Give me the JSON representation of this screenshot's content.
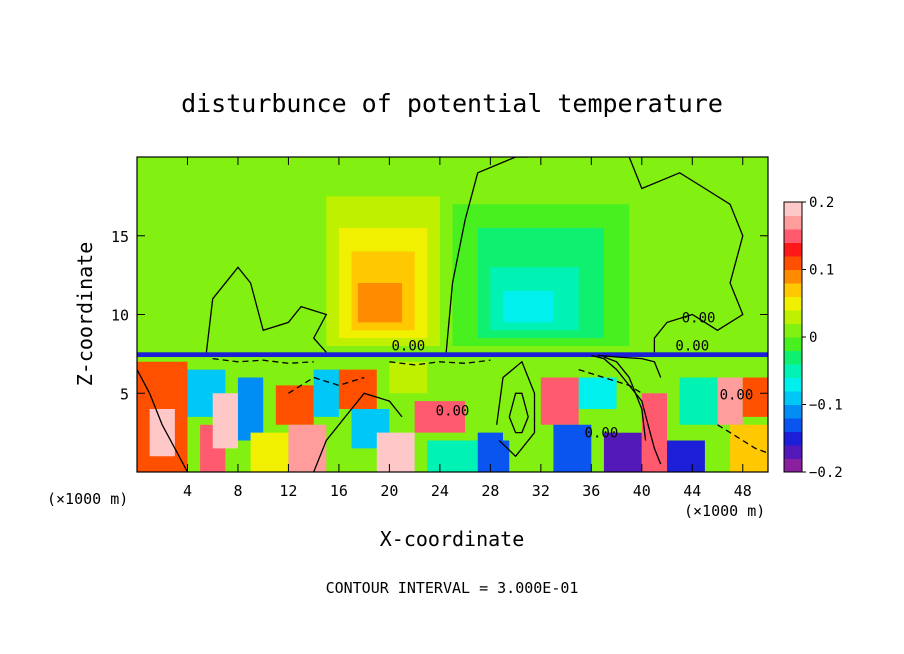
{
  "chart_data": {
    "type": "heatmap",
    "title": "disturbunce of potential temperature",
    "xlabel": "X-coordinate",
    "ylabel": "Z-coordinate",
    "x_unit_left": "(×1000 m)",
    "x_unit_right": "(×1000 m)",
    "xlim": [
      0,
      50
    ],
    "ylim": [
      0,
      20
    ],
    "x_ticks": [
      4,
      8,
      12,
      16,
      20,
      24,
      28,
      32,
      36,
      40,
      44,
      48
    ],
    "x_tick_labels": [
      "4",
      "8",
      "12",
      "16",
      "20",
      "24",
      "28",
      "32",
      "36",
      "40",
      "44",
      "48"
    ],
    "y_ticks": [
      5,
      10,
      15
    ],
    "y_tick_labels": [
      "5",
      "10",
      "15"
    ],
    "colorbar": {
      "min": -0.2,
      "max": 0.2,
      "ticks": [
        0.2,
        0.1,
        0,
        -0.1,
        -0.2
      ],
      "tick_labels": [
        "0.2",
        "0.1",
        "0",
        "−0.1",
        "−0.2"
      ],
      "colors": [
        "#8a1fa0",
        "#5218b8",
        "#1c1ed8",
        "#0a55f0",
        "#008ef4",
        "#00c8f6",
        "#00f0ee",
        "#00f2b4",
        "#10f070",
        "#48f020",
        "#82f010",
        "#bef000",
        "#f0f000",
        "#ffc800",
        "#ff8c00",
        "#ff5000",
        "#ff1818",
        "#ff5a6e",
        "#ff9c9c",
        "#ffc8c8"
      ]
    },
    "contour_labels": [
      {
        "text": "0.00",
        "x": 21.5,
        "z": 7.7
      },
      {
        "text": "0.00",
        "x": 44.5,
        "z": 9.5
      },
      {
        "text": "0.00",
        "x": 44.0,
        "z": 7.7
      },
      {
        "text": "0.00",
        "x": 25.0,
        "z": 3.6
      },
      {
        "text": "0.00",
        "x": 47.5,
        "z": 4.6
      },
      {
        "text": "0.00",
        "x": 36.8,
        "z": 2.2
      }
    ],
    "cells": [
      {
        "x0": 0,
        "x1": 50,
        "z0": 7.5,
        "z1": 20,
        "v": 0.01
      },
      {
        "x0": 15,
        "x1": 24,
        "z0": 8,
        "z1": 17.5,
        "v": 0.03
      },
      {
        "x0": 16,
        "x1": 23,
        "z0": 8.5,
        "z1": 15.5,
        "v": 0.05
      },
      {
        "x0": 17,
        "x1": 22,
        "z0": 9,
        "z1": 14,
        "v": 0.07
      },
      {
        "x0": 17.5,
        "x1": 21,
        "z0": 9.5,
        "z1": 12,
        "v": 0.09
      },
      {
        "x0": 25,
        "x1": 39,
        "z0": 8,
        "z1": 17,
        "v": -0.01
      },
      {
        "x0": 27,
        "x1": 37,
        "z0": 8.5,
        "z1": 15.5,
        "v": -0.03
      },
      {
        "x0": 28,
        "x1": 35,
        "z0": 9,
        "z1": 13,
        "v": -0.05
      },
      {
        "x0": 29,
        "x1": 33,
        "z0": 9.5,
        "z1": 11.5,
        "v": -0.07
      },
      {
        "x0": 41,
        "x1": 50,
        "z0": 8,
        "z1": 16,
        "v": 0.015
      },
      {
        "x0": 0,
        "x1": 50,
        "z0": 0,
        "z1": 7.4,
        "v": 0.005
      },
      {
        "x0": 0,
        "x1": 50,
        "z0": 7.3,
        "z1": 7.6,
        "v": -0.16
      },
      {
        "x0": 0,
        "x1": 4,
        "z0": 0,
        "z1": 7,
        "v": 0.12
      },
      {
        "x0": 1,
        "x1": 3,
        "z0": 1,
        "z1": 4,
        "v": 0.2
      },
      {
        "x0": 4,
        "x1": 7,
        "z0": 3.5,
        "z1": 6.5,
        "v": -0.1
      },
      {
        "x0": 5,
        "x1": 7,
        "z0": 0,
        "z1": 3,
        "v": 0.15
      },
      {
        "x0": 6,
        "x1": 8,
        "z0": 1.5,
        "z1": 5,
        "v": 0.2
      },
      {
        "x0": 8,
        "x1": 10,
        "z0": 2,
        "z1": 6,
        "v": -0.12
      },
      {
        "x0": 9,
        "x1": 12,
        "z0": 0,
        "z1": 2.5,
        "v": 0.05
      },
      {
        "x0": 11,
        "x1": 14,
        "z0": 3,
        "z1": 5.5,
        "v": 0.1
      },
      {
        "x0": 12,
        "x1": 15,
        "z0": 0,
        "z1": 3,
        "v": 0.16
      },
      {
        "x0": 14,
        "x1": 16,
        "z0": 3.5,
        "z1": 6.5,
        "v": -0.09
      },
      {
        "x0": 16,
        "x1": 19,
        "z0": 4,
        "z1": 6.5,
        "v": 0.12
      },
      {
        "x0": 17,
        "x1": 20,
        "z0": 1.5,
        "z1": 4,
        "v": -0.1
      },
      {
        "x0": 19,
        "x1": 22,
        "z0": 0,
        "z1": 2.5,
        "v": 0.2
      },
      {
        "x0": 20,
        "x1": 23,
        "z0": 5,
        "z1": 7,
        "v": 0.03
      },
      {
        "x0": 22,
        "x1": 26,
        "z0": 2.5,
        "z1": 4.5,
        "v": 0.14
      },
      {
        "x0": 23,
        "x1": 27,
        "z0": 0,
        "z1": 2,
        "v": -0.05
      },
      {
        "x0": 24,
        "x1": 27,
        "z0": 5,
        "z1": 7,
        "v": 0.02
      },
      {
        "x0": 27,
        "x1": 29.5,
        "z0": 0,
        "z1": 2.5,
        "v": -0.13
      },
      {
        "x0": 29,
        "x1": 32,
        "z0": 2,
        "z1": 7,
        "v": 0
      },
      {
        "x0": 32,
        "x1": 35,
        "z0": 3,
        "z1": 6,
        "v": 0.15
      },
      {
        "x0": 33,
        "x1": 36,
        "z0": 0,
        "z1": 3,
        "v": -0.14
      },
      {
        "x0": 35,
        "x1": 38,
        "z0": 4,
        "z1": 6,
        "v": -0.08
      },
      {
        "x0": 37,
        "x1": 40,
        "z0": 0,
        "z1": 2.5,
        "v": -0.17
      },
      {
        "x0": 38,
        "x1": 40.5,
        "z0": 2.5,
        "z1": 5,
        "v": 0.02
      },
      {
        "x0": 40,
        "x1": 42,
        "z0": 0,
        "z1": 5,
        "v": 0.14
      },
      {
        "x0": 42,
        "x1": 45,
        "z0": 0,
        "z1": 2,
        "v": -0.16
      },
      {
        "x0": 43,
        "x1": 46,
        "z0": 3,
        "z1": 6,
        "v": -0.06
      },
      {
        "x0": 46,
        "x1": 48,
        "z0": 3,
        "z1": 6,
        "v": 0.17
      },
      {
        "x0": 47,
        "x1": 50,
        "z0": 0,
        "z1": 3,
        "v": 0.06
      },
      {
        "x0": 48,
        "x1": 50,
        "z0": 3.5,
        "z1": 6,
        "v": 0.12
      }
    ],
    "contours": [
      {
        "style": "solid",
        "points": [
          [
            5.5,
            7.6
          ],
          [
            6,
            11
          ],
          [
            8,
            13
          ],
          [
            9,
            12
          ],
          [
            10,
            9
          ],
          [
            12,
            9.5
          ],
          [
            13,
            10.5
          ],
          [
            15,
            10
          ],
          [
            14,
            8.5
          ],
          [
            15,
            7.6
          ]
        ]
      },
      {
        "style": "solid",
        "points": [
          [
            24.5,
            7.6
          ],
          [
            25,
            12
          ],
          [
            26,
            16
          ],
          [
            27,
            19
          ],
          [
            30,
            20
          ],
          [
            31,
            20
          ]
        ]
      },
      {
        "style": "solid",
        "points": [
          [
            39,
            20
          ],
          [
            40,
            18
          ],
          [
            43,
            19
          ],
          [
            45,
            18
          ],
          [
            47,
            17
          ],
          [
            48,
            15
          ],
          [
            47,
            12
          ],
          [
            48,
            10
          ],
          [
            46,
            9
          ],
          [
            44,
            10
          ],
          [
            42,
            9.5
          ],
          [
            41,
            8.5
          ],
          [
            41,
            7.6
          ]
        ]
      },
      {
        "style": "solid",
        "points": [
          [
            0,
            6.5
          ],
          [
            1,
            5
          ],
          [
            2,
            3
          ],
          [
            3,
            1.5
          ],
          [
            4,
            0
          ]
        ]
      },
      {
        "style": "solid",
        "points": [
          [
            14,
            0
          ],
          [
            15,
            2
          ],
          [
            16.5,
            3.5
          ],
          [
            18,
            5
          ],
          [
            20,
            4.5
          ],
          [
            21,
            3.5
          ]
        ]
      },
      {
        "style": "solid",
        "points": [
          [
            29.5,
            3.5
          ],
          [
            30,
            5
          ],
          [
            30.5,
            5
          ],
          [
            31,
            3.5
          ],
          [
            30.5,
            2.5
          ],
          [
            30,
            2.5
          ],
          [
            29.5,
            3.5
          ]
        ]
      },
      {
        "style": "solid",
        "points": [
          [
            28.5,
            3
          ],
          [
            29,
            6
          ],
          [
            30.5,
            7
          ],
          [
            31.5,
            5
          ],
          [
            31.5,
            2.5
          ],
          [
            30,
            1
          ],
          [
            28.7,
            2
          ]
        ]
      },
      {
        "style": "dashed",
        "points": [
          [
            6,
            7.2
          ],
          [
            8,
            7
          ],
          [
            10,
            7.1
          ],
          [
            12,
            6.9
          ],
          [
            14,
            7
          ]
        ]
      },
      {
        "style": "dashed",
        "points": [
          [
            20,
            7
          ],
          [
            22,
            6.8
          ],
          [
            24,
            7
          ],
          [
            26,
            6.9
          ],
          [
            28,
            7.1
          ]
        ]
      },
      {
        "style": "dashed",
        "points": [
          [
            35,
            6.5
          ],
          [
            37,
            6
          ],
          [
            39,
            5.5
          ],
          [
            40,
            5
          ]
        ]
      },
      {
        "style": "dashed",
        "points": [
          [
            46,
            3
          ],
          [
            47,
            2.5
          ],
          [
            48,
            2
          ],
          [
            49,
            1.5
          ],
          [
            50,
            1.2
          ]
        ]
      },
      {
        "style": "dashed",
        "points": [
          [
            12,
            5
          ],
          [
            14,
            6
          ],
          [
            16,
            5.5
          ],
          [
            18,
            6
          ]
        ]
      },
      {
        "style": "solid",
        "points": [
          [
            36,
            7.4
          ],
          [
            37,
            7.2
          ],
          [
            38,
            6.5
          ],
          [
            39,
            5.5
          ],
          [
            40,
            4.5
          ],
          [
            40.5,
            3
          ],
          [
            41,
            1.5
          ],
          [
            41.5,
            0.5
          ]
        ]
      },
      {
        "style": "solid",
        "points": [
          [
            37,
            7.3
          ],
          [
            38,
            7
          ],
          [
            39,
            6
          ],
          [
            39.5,
            5
          ],
          [
            40,
            4
          ],
          [
            40.3,
            2
          ]
        ]
      },
      {
        "style": "solid",
        "points": [
          [
            36.5,
            7.4
          ],
          [
            38,
            7.3
          ],
          [
            40,
            7.2
          ],
          [
            41,
            7
          ],
          [
            41.5,
            6
          ]
        ]
      }
    ],
    "contour_interval_text": "CONTOUR INTERVAL = 3.000E-01"
  }
}
